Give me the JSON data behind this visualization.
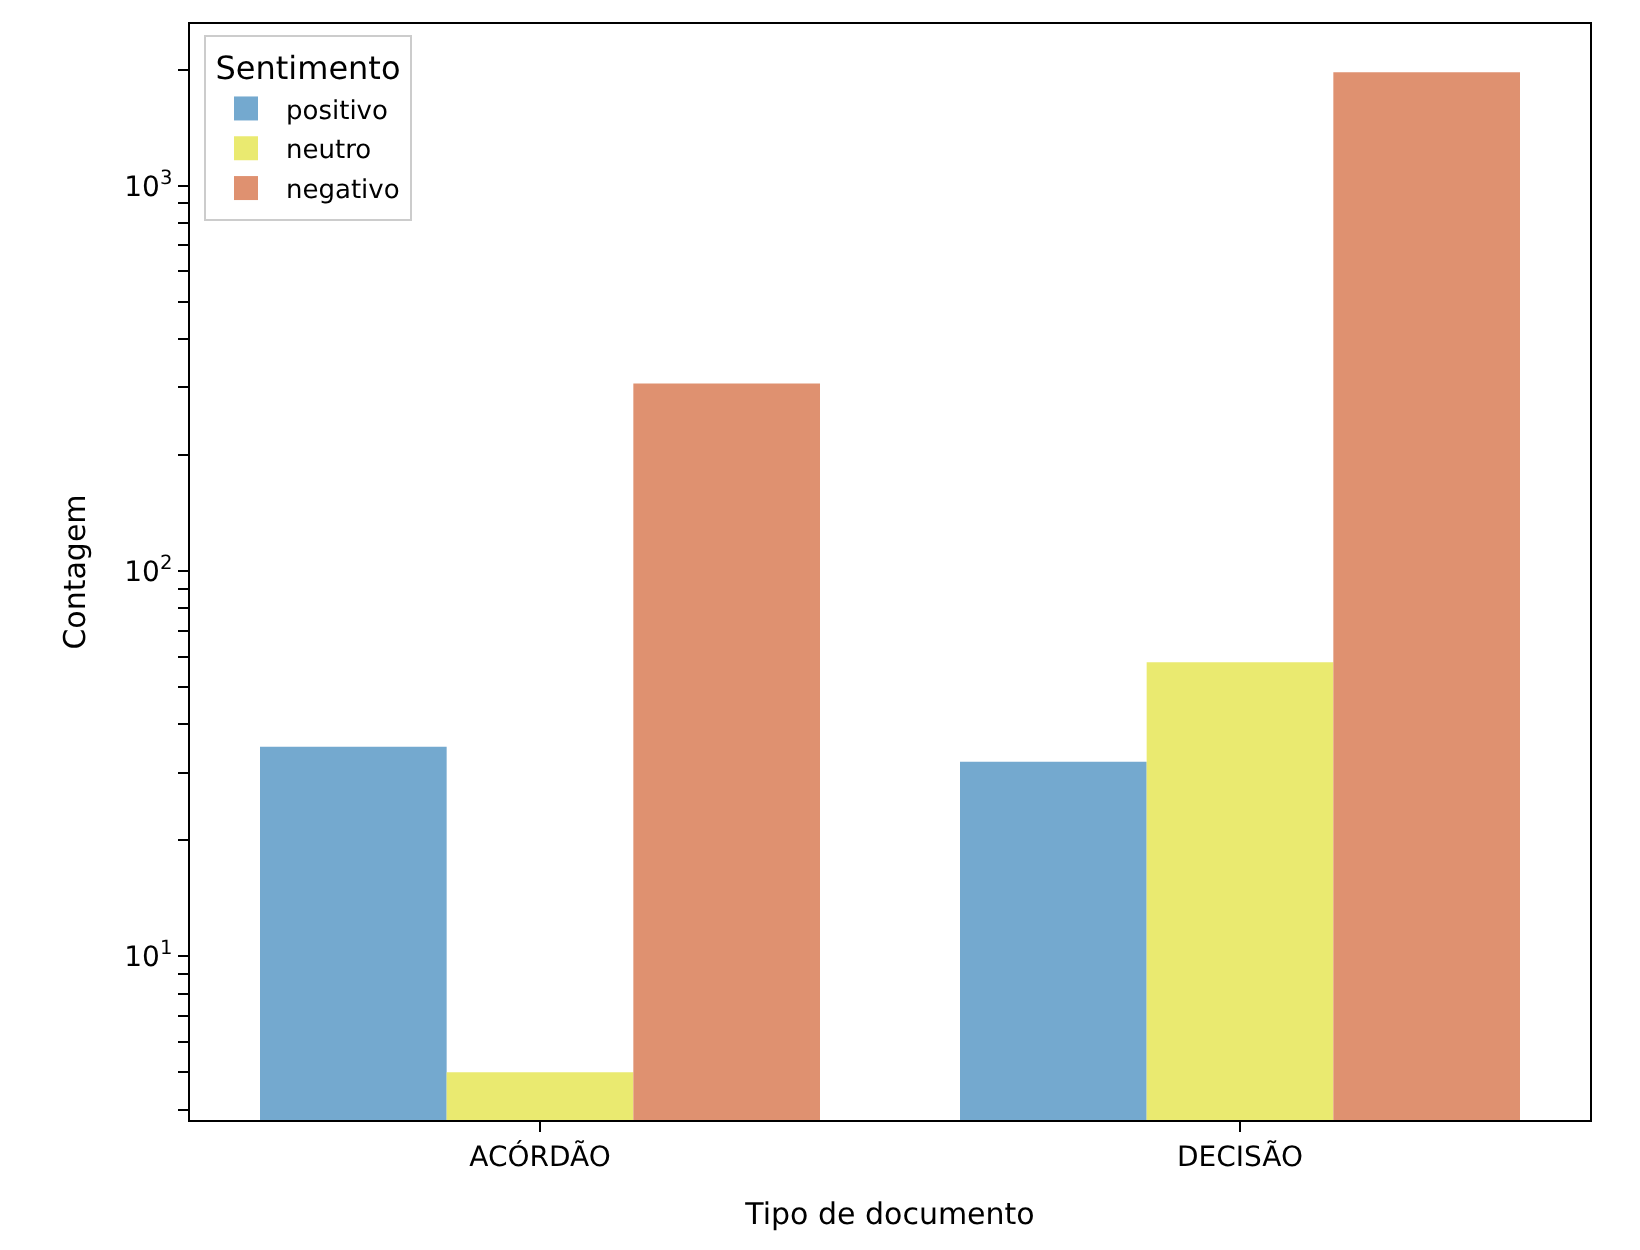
{
  "chart_data": {
    "type": "bar",
    "xlabel": "Tipo de documento",
    "ylabel": "Contagem",
    "legend_title": "Sentimento",
    "categories": [
      "ACÓRDÃO",
      "DECISÃO"
    ],
    "series": [
      {
        "name": "positivo",
        "color": "#74a9cf",
        "values": [
          35,
          32
        ]
      },
      {
        "name": "neutro",
        "color": "#eaea70",
        "values": [
          5,
          58
        ]
      },
      {
        "name": "negativo",
        "color": "#df9170",
        "values": [
          307,
          1970
        ]
      }
    ],
    "log": true,
    "ylim": [
      3.76,
      2630
    ],
    "yticks": [
      {
        "value": 4,
        "label": null
      },
      {
        "value": 5,
        "label": null
      },
      {
        "value": 6,
        "label": null
      },
      {
        "value": 7,
        "label": null
      },
      {
        "value": 8,
        "label": null
      },
      {
        "value": 9,
        "label": null
      },
      {
        "value": 10,
        "label": "10$^{1}$"
      },
      {
        "value": 20,
        "label": null
      },
      {
        "value": 30,
        "label": null
      },
      {
        "value": 40,
        "label": null
      },
      {
        "value": 50,
        "label": null
      },
      {
        "value": 60,
        "label": null
      },
      {
        "value": 70,
        "label": null
      },
      {
        "value": 80,
        "label": null
      },
      {
        "value": 90,
        "label": null
      },
      {
        "value": 100,
        "label": "10$^{2}$"
      },
      {
        "value": 200,
        "label": null
      },
      {
        "value": 300,
        "label": null
      },
      {
        "value": 400,
        "label": null
      },
      {
        "value": 500,
        "label": null
      },
      {
        "value": 600,
        "label": null
      },
      {
        "value": 700,
        "label": null
      },
      {
        "value": 800,
        "label": null
      },
      {
        "value": 900,
        "label": null
      },
      {
        "value": 1000,
        "label": "10$^{3}$"
      },
      {
        "value": 2000,
        "label": null
      }
    ],
    "legend": "top left"
  }
}
